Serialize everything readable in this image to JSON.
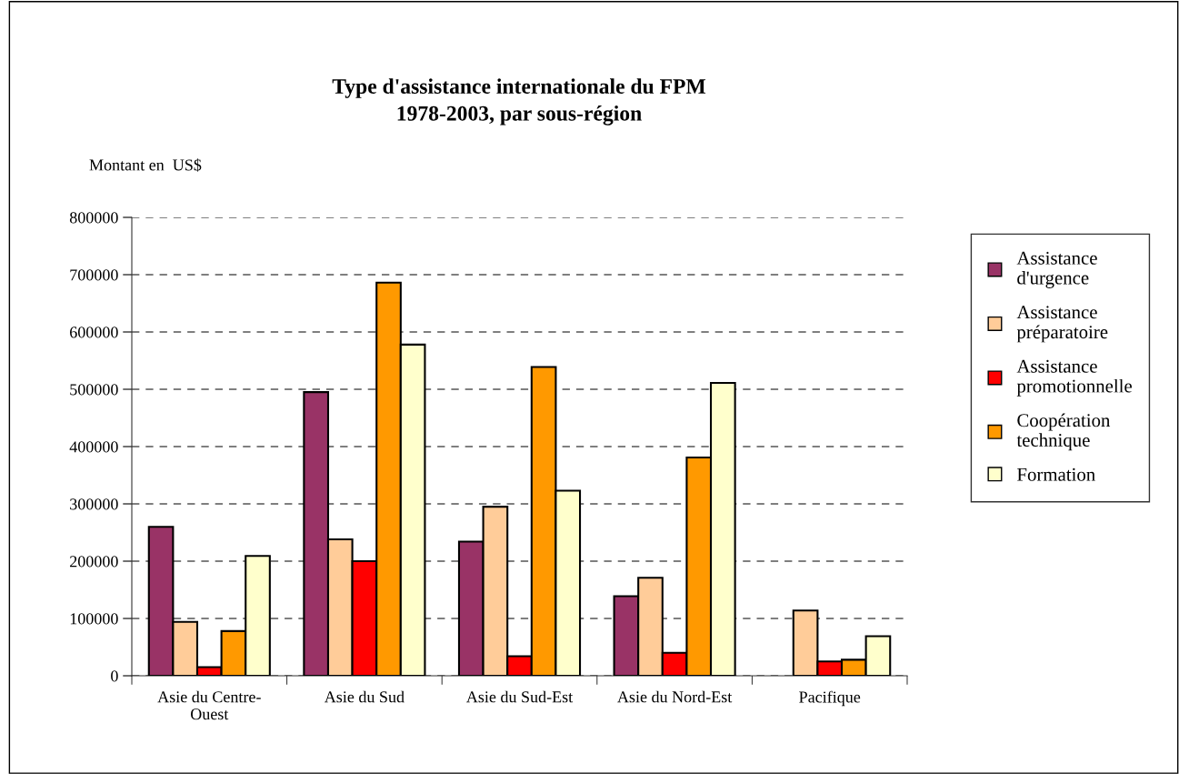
{
  "chart_data": {
    "type": "bar",
    "title": "Type d'assistance internationale du FPM\n1978-2003, par sous-région",
    "ylabel": "Montant en  US$",
    "categories": [
      "Asie du Centre-\nOuest",
      "Asie du Sud",
      "Asie du Sud-Est",
      "Asie du Nord-Est",
      "Pacifique"
    ],
    "series": [
      {
        "name": "Assistance\nd'urgence",
        "color": "#993366",
        "values": [
          260000,
          495000,
          234000,
          139000,
          null
        ]
      },
      {
        "name": "Assistance\npréparatoire",
        "color": "#ffcc99",
        "values": [
          94000,
          238000,
          295000,
          171000,
          114000
        ]
      },
      {
        "name": "Assistance\npromotionnelle",
        "color": "#ff0000",
        "values": [
          15000,
          200000,
          34000,
          40000,
          25000
        ]
      },
      {
        "name": "Coopération\ntechnique",
        "color": "#ff9900",
        "values": [
          78000,
          686000,
          539000,
          381000,
          28000
        ]
      },
      {
        "name": "Formation",
        "color": "#ffffcc",
        "values": [
          209000,
          578000,
          323000,
          511000,
          69000
        ]
      }
    ],
    "ylim": [
      0,
      800000
    ],
    "yticks": [
      0,
      100000,
      200000,
      300000,
      400000,
      500000,
      600000,
      700000,
      800000
    ],
    "grid": "y",
    "legend": "right"
  }
}
